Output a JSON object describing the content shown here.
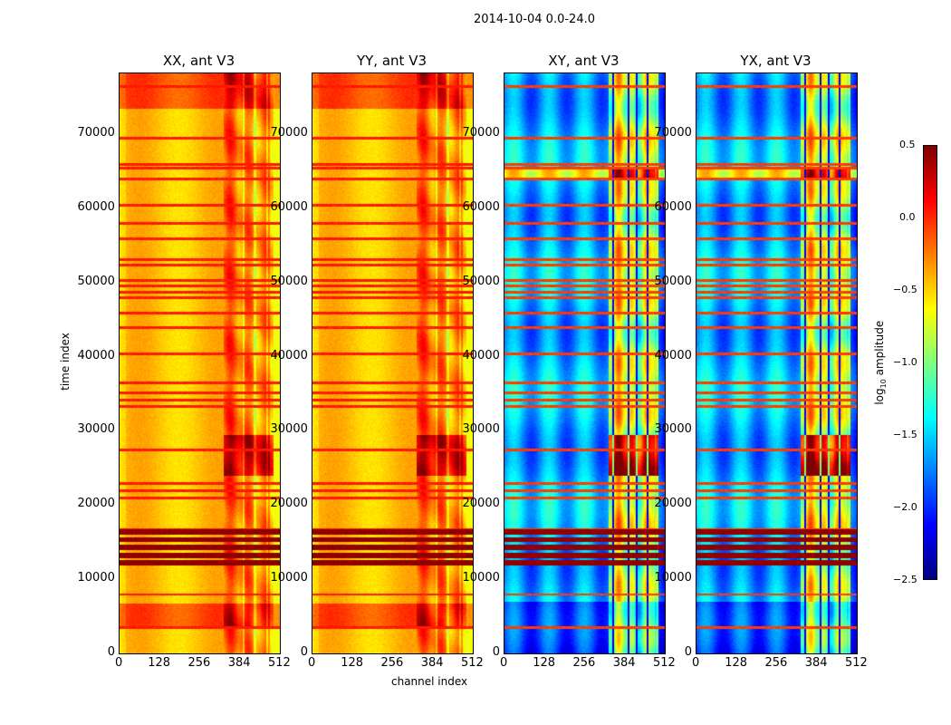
{
  "suptitle": "2014-10-04 0.0-24.0",
  "chart_data": {
    "type": "heatmap",
    "panels": [
      {
        "title": "XX, ant V3",
        "kind": "auto"
      },
      {
        "title": "YY, ant V3",
        "kind": "auto"
      },
      {
        "title": "XY, ant V3",
        "kind": "cross"
      },
      {
        "title": "YX, ant V3",
        "kind": "cross"
      }
    ],
    "xlabel": "channel index",
    "ylabel": "time index",
    "xlim": [
      0,
      512
    ],
    "ylim": [
      0,
      78200
    ],
    "xticks": [
      "0",
      "128",
      "256",
      "384",
      "512"
    ],
    "yticks": [
      "0",
      "10000",
      "20000",
      "30000",
      "40000",
      "50000",
      "60000",
      "70000"
    ],
    "colorbar": {
      "label": "log10 amplitude",
      "label_main": "log",
      "label_sub": "10",
      "label_rest": " amplitude",
      "clim": [
        -2.5,
        0.5
      ],
      "ticks": [
        "0.5",
        "0.0",
        "−0.5",
        "−1.0",
        "−1.5",
        "−2.0",
        "−2.5"
      ],
      "colormap": "jet"
    },
    "rfi_times": [
      76500,
      69500,
      66000,
      65500,
      64000,
      60500,
      58000,
      56000,
      53200,
      52400,
      50300,
      49600,
      48800,
      48000,
      46000,
      44000,
      40500,
      36500,
      35200,
      34200,
      33300,
      27500,
      23000,
      22000,
      21000,
      16800,
      16200,
      8000,
      3500
    ],
    "dark_band_times": [
      [
        11500,
        17000
      ]
    ]
  }
}
